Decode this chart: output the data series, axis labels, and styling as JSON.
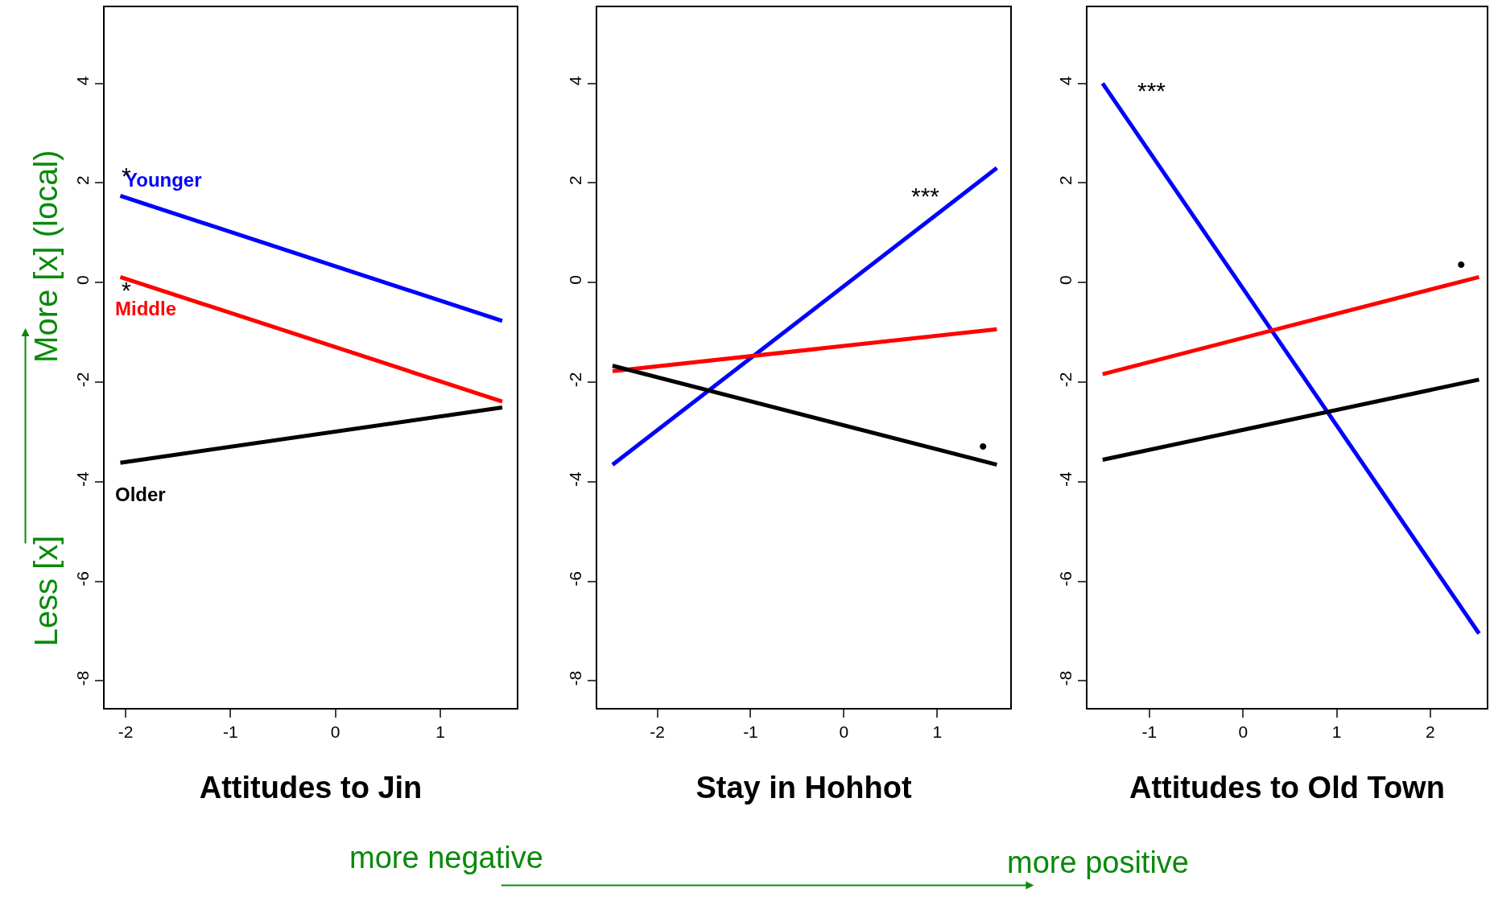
{
  "chart_data": [
    {
      "type": "line",
      "xlabel": "Attitudes to Jin",
      "xlim": [
        -2.2,
        1.73
      ],
      "ylim": [
        -8.54,
        5.53
      ],
      "xticks": [
        -2,
        -1,
        0,
        1
      ],
      "yticks": [
        -8,
        -6,
        -4,
        -2,
        0,
        2,
        4
      ],
      "line_style": "solid",
      "marker": "none",
      "legend": false,
      "series": [
        {
          "name": "Younger",
          "color": "#0000ff",
          "x": [
            -2.05,
            1.59
          ],
          "values": [
            1.74,
            -0.77
          ]
        },
        {
          "name": "Middle",
          "color": "#ff0000",
          "x": [
            -2.05,
            1.59
          ],
          "values": [
            0.11,
            -2.39
          ]
        },
        {
          "name": "Older",
          "color": "#000000",
          "x": [
            -2.05,
            1.59
          ],
          "values": [
            -3.62,
            -2.51
          ]
        }
      ],
      "annotations": [
        "*",
        "*",
        "More [x] (local)",
        "Less [x]",
        "more negative",
        "more positive"
      ]
    },
    {
      "type": "line",
      "xlabel": "Stay in Hohhot",
      "xlim": [
        -2.64,
        1.78
      ],
      "ylim": [
        -8.54,
        5.53
      ],
      "xticks": [
        -2,
        -1,
        0,
        1
      ],
      "yticks": [
        -8,
        -6,
        -4,
        -2,
        0,
        2,
        4
      ],
      "line_style": "solid",
      "marker": "none",
      "legend": false,
      "series": [
        {
          "color": "#0000ff",
          "x": [
            -2.48,
            1.64
          ],
          "values": [
            -3.66,
            2.3
          ]
        },
        {
          "color": "#ff0000",
          "x": [
            -2.48,
            1.64
          ],
          "values": [
            -1.78,
            -0.94
          ]
        },
        {
          "color": "#000000",
          "x": [
            -2.48,
            1.64
          ],
          "values": [
            -1.67,
            -3.66
          ]
        }
      ],
      "annotations": [
        "***",
        "•"
      ]
    },
    {
      "type": "line",
      "xlabel": "Attitudes to Old Town",
      "xlim": [
        -1.66,
        2.6
      ],
      "ylim": [
        -8.54,
        5.53
      ],
      "xticks": [
        -1,
        0,
        1,
        2
      ],
      "yticks": [
        -8,
        -6,
        -4,
        -2,
        0,
        2,
        4
      ],
      "line_style": "solid",
      "marker": "none",
      "legend": false,
      "series": [
        {
          "color": "#0000ff",
          "x": [
            -1.5,
            2.52
          ],
          "values": [
            4.0,
            -7.05
          ]
        },
        {
          "color": "#ff0000",
          "x": [
            -1.5,
            2.52
          ],
          "values": [
            -1.84,
            0.11
          ]
        },
        {
          "color": "#000000",
          "x": [
            -1.5,
            2.52
          ],
          "values": [
            -3.56,
            -1.95
          ]
        }
      ],
      "annotations": [
        "***",
        "•"
      ]
    }
  ]
}
